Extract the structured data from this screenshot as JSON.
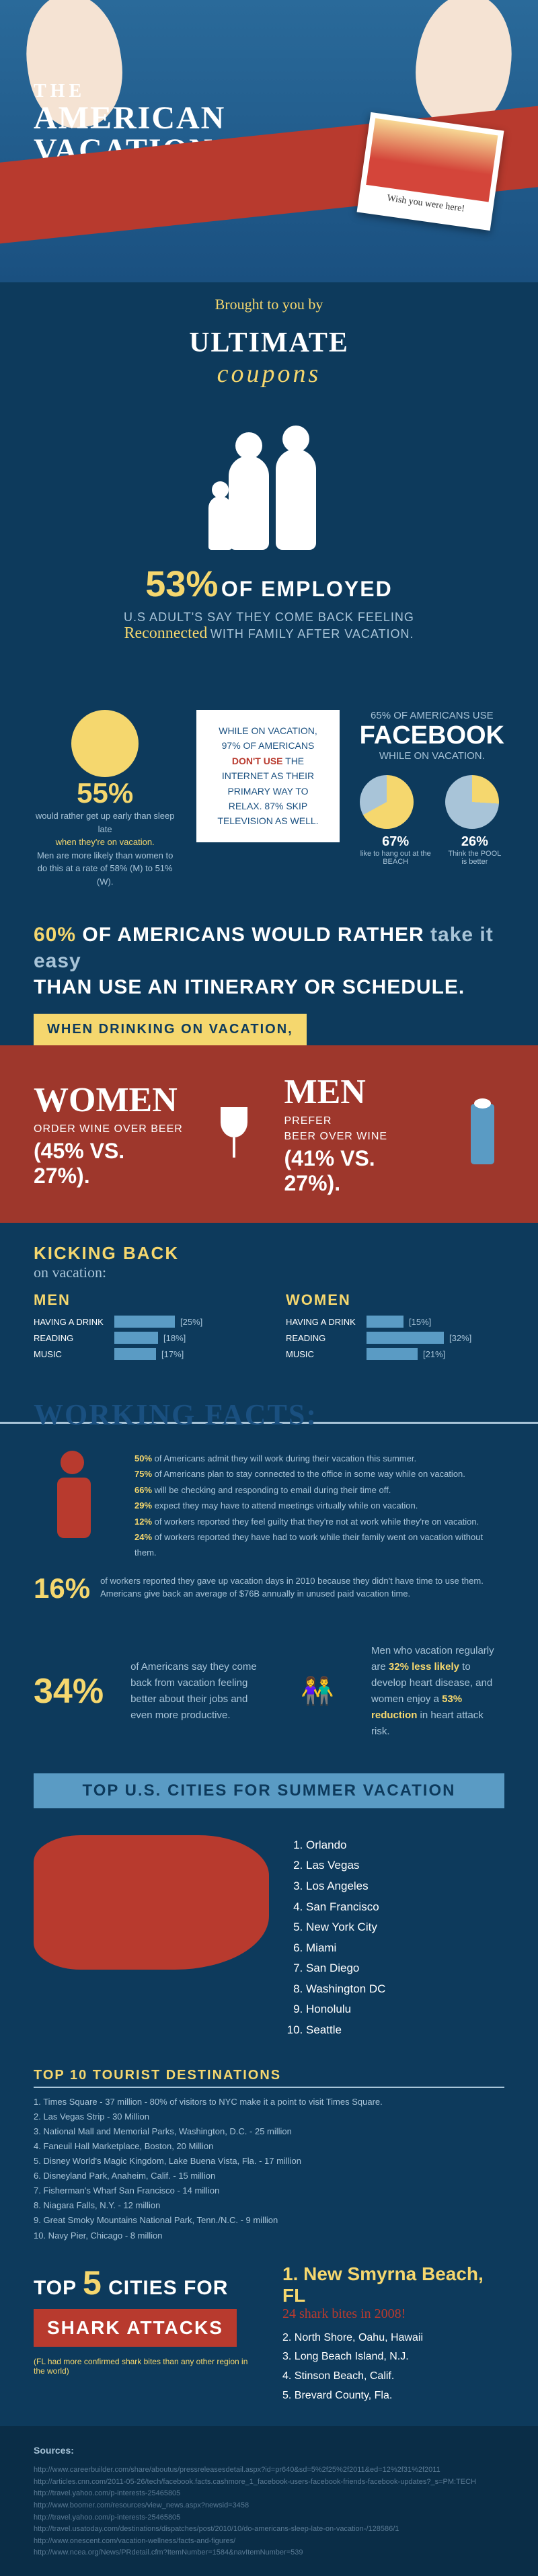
{
  "hero": {
    "the": "THE",
    "title1": "AMERICAN",
    "title2": "VACATION",
    "postcard": "Wish you were here!"
  },
  "brought": "Brought to you by",
  "ultimate": {
    "line1": "ULTIMATE",
    "line2": "coupons"
  },
  "stat53": {
    "pct": "53%",
    "employed": "OF EMPLOYED",
    "sub1": "U.S ADULT'S SAY THEY COME BACK FEELING",
    "reconnected": "Reconnected",
    "sub2": "WITH FAMILY AFTER VACATION."
  },
  "sun": {
    "pct": "55%",
    "text1": "would rather get up early than sleep late",
    "text2": "when they're on vacation.",
    "text3": "Men are more likely than women to do this at a rate of 58% (M) to 51% (W)."
  },
  "whitebox": {
    "text1": "WHILE ON VACATION, 97% OF AMERICANS ",
    "dont": "DON'T USE",
    "text2": " THE INTERNET AS THEIR PRIMARY WAY TO RELAX. 87% SKIP TELEVISION AS WELL."
  },
  "facebook": {
    "line1": "65% OF AMERICANS USE",
    "line2": "FACEBOOK",
    "line3": "WHILE ON VACATION."
  },
  "pies": {
    "p1": {
      "pct": "67%",
      "label": "like to hang out at the BEACH",
      "value": 67
    },
    "p2": {
      "pct": "26%",
      "label": "Think the POOL is better",
      "value": 26
    }
  },
  "stat60": {
    "y": "60%",
    "w1": "OF AMERICANS WOULD RATHER ",
    "b1": "take it easy",
    "w2": "THAN USE AN ITINERARY OR SCHEDULE."
  },
  "drinking": {
    "tag": "WHEN DRINKING ON VACATION,",
    "women": {
      "title": "WOMEN",
      "prefer": "ORDER WINE OVER BEER",
      "vs": "(45% VS. 27%)."
    },
    "men": {
      "title": "MEN",
      "prefer": "PREFER",
      "sub": "BEER OVER WINE",
      "vs": "(41% VS. 27%)."
    }
  },
  "kickback": {
    "title": "KICKING BACK",
    "sub": "on vacation:",
    "men": {
      "label": "MEN",
      "bars": [
        {
          "label": "HAVING A DRINK",
          "pct": "[25%]",
          "w": 90
        },
        {
          "label": "READING",
          "pct": "[18%]",
          "w": 65
        },
        {
          "label": "MUSIC",
          "pct": "[17%]",
          "w": 62
        }
      ]
    },
    "women": {
      "label": "WOMEN",
      "bars": [
        {
          "label": "HAVING A DRINK",
          "pct": "[15%]",
          "w": 55
        },
        {
          "label": "READING",
          "pct": "[32%]",
          "w": 115
        },
        {
          "label": "MUSIC",
          "pct": "[21%]",
          "w": 76
        }
      ]
    }
  },
  "workingHeader": "WORKING FACTS:",
  "working": [
    {
      "y": "50%",
      "t": " of Americans admit they will work during their vacation this summer."
    },
    {
      "y": "75%",
      "t": " of Americans plan to stay connected to the office in some way while on vacation."
    },
    {
      "y": "66%",
      "t": " will be checking and responding to email during their time off."
    },
    {
      "y": "29%",
      "t": " expect they may have to attend meetings virtually while on vacation."
    },
    {
      "y": "12%",
      "t": " of workers reported they feel guilty that they're not at work while they're on vacation."
    },
    {
      "y": "24%",
      "t": " of workers reported they have had to work while their family went on vacation without them."
    }
  ],
  "working16": {
    "pct": "16%",
    "text": "of workers reported they gave up vacation days in 2010 because they didn't have time to use them. Americans give back an average of $76B annually in unused paid vacation time."
  },
  "stat34": {
    "pct": "34%",
    "text": "of Americans say they come back from vacation feeling better about their jobs and even more productive."
  },
  "heart": {
    "t1": "Men who vacation regularly are ",
    "y1": "32% less likely",
    "t2": " to develop heart disease, and women enjoy a ",
    "y2": "53% reduction",
    "t3": " in heart attack risk."
  },
  "topCitiesHeader": "TOP U.S. CITIES FOR SUMMER VACATION",
  "cities": [
    "Orlando",
    "Las Vegas",
    "Los Angeles",
    "San Francisco",
    "New York City",
    "Miami",
    "San Diego",
    "Washington DC",
    "Honolulu",
    "Seattle"
  ],
  "top10Header": "TOP 10 TOURIST DESTINATIONS",
  "top10": [
    "1. Times Square - 37 million - 80% of visitors to NYC make it a point to visit Times Square.",
    "2. Las Vegas Strip - 30 Million",
    "3. National Mall and Memorial Parks, Washington, D.C. - 25 million",
    "4. Faneuil Hall Marketplace, Boston, 20 Million",
    "5. Disney World's Magic Kingdom, Lake Buena Vista, Fla. - 17 million",
    "6. Disneyland Park, Anaheim, Calif. - 15 million",
    "7. Fisherman's Wharf San Francisco - 14 million",
    "8. Niagara Falls, N.Y. - 12 million",
    "9. Great Smoky Mountains National Park, Tenn./N.C. - 9 million",
    "10. Navy Pier, Chicago - 8 million"
  ],
  "shark": {
    "top": "TOP",
    "five": "5",
    "cities": "CITIES FOR",
    "banner": "SHARK ATTACKS",
    "note": "(FL had more confirmed shark bites than any other region in the world)",
    "first": "1. New Smyrna Beach, FL",
    "firstSub": "24 shark bites in 2008!",
    "list": [
      "2. North Shore, Oahu, Hawaii",
      "3. Long Beach Island, N.J.",
      "4. Stinson Beach, Calif.",
      "5. Brevard County, Fla."
    ]
  },
  "sourcesHeader": "Sources:",
  "sources": [
    "http://www.careerbuilder.com/share/aboutus/pressreleasesdetail.aspx?id=pr640&sd=5%2f25%2f2011&ed=12%2f31%2f2011",
    "http://articles.cnn.com/2011-05-26/tech/facebook.facts.cashmore_1_facebook-users-facebook-friends-facebook-updates?_s=PM:TECH",
    "http://travel.yahoo.com/p-interests-25465805",
    "http://www.boomer.com/resources/view_news.aspx?newsid=3458",
    "http://travel.yahoo.com/p-interests-25465805",
    "http://travel.usatoday.com/destinations/dispatches/post/2010/10/do-americans-sleep-late-on-vacation-/128586/1",
    "http://www.onescent.com/vacation-wellness/facts-and-figures/",
    "http://www.ncea.org/News/PRdetail.cfm?ItemNumber=1584&navItemNumber=539"
  ],
  "colors": {
    "bg": "#0d3a5c",
    "yellow": "#f5d76e",
    "red": "#b83a2e",
    "lightblue": "#a8c4d8",
    "medblue": "#5a9bc4"
  }
}
